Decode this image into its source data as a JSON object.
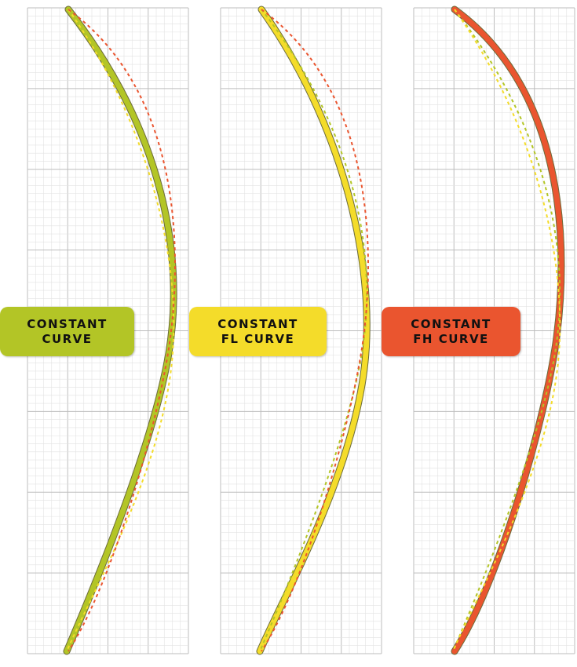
{
  "panels": [
    {
      "label_line1": "CONSTANT",
      "label_line2": "CURVE",
      "color": "#b3c526",
      "main_curve": "constant",
      "dashed_curves": [
        "constant-fl",
        "constant-fh"
      ]
    },
    {
      "label_line1": "CONSTANT",
      "label_line2": "FL CURVE",
      "color": "#f4dc2a",
      "main_curve": "constant-fl",
      "dashed_curves": [
        "constant",
        "constant-fh"
      ]
    },
    {
      "label_line1": "CONSTANT",
      "label_line2": "FH CURVE",
      "color": "#ea552f",
      "main_curve": "constant-fh",
      "dashed_curves": [
        "constant",
        "constant-fl"
      ]
    }
  ],
  "colors": {
    "grid_major": "#bdbdbd",
    "grid_minor": "#e2e2e2",
    "green": "#b3c526",
    "yellow": "#f4dc2a",
    "red": "#ea552f"
  }
}
